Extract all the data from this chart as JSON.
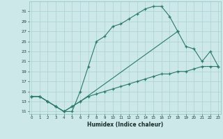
{
  "xlabel": "Humidex (Indice chaleur)",
  "bg_color": "#cce8e8",
  "grid_color": "#aad0d0",
  "line_color": "#2a7a6a",
  "curve1_x": [
    0,
    1,
    2,
    3,
    4,
    5,
    6,
    7,
    8,
    9,
    10,
    11,
    12,
    13,
    14,
    15,
    16,
    17,
    18
  ],
  "curve1_y": [
    14,
    14,
    13,
    12,
    11,
    11,
    15,
    20,
    25,
    26,
    28,
    28.5,
    29.5,
    30.5,
    31.5,
    32,
    32,
    30,
    27
  ],
  "curve2_x": [
    0,
    1,
    2,
    3,
    4,
    5,
    6,
    18,
    19,
    20,
    21,
    22,
    23
  ],
  "curve2_y": [
    14,
    14,
    13,
    12,
    11,
    12,
    13,
    27,
    24,
    23.5,
    21,
    23,
    20
  ],
  "curve3_x": [
    0,
    1,
    2,
    3,
    4,
    5,
    6,
    7,
    8,
    9,
    10,
    11,
    12,
    13,
    14,
    15,
    16,
    17,
    18,
    19,
    20,
    21,
    22,
    23
  ],
  "curve3_y": [
    14,
    14,
    13,
    12,
    11,
    12,
    13,
    14,
    14.5,
    15,
    15.5,
    16,
    16.5,
    17,
    17.5,
    18,
    18.5,
    18.5,
    19,
    19,
    19.5,
    20,
    20,
    20
  ],
  "xlim": [
    -0.3,
    23.3
  ],
  "ylim": [
    10.5,
    33
  ],
  "yticks": [
    11,
    13,
    15,
    17,
    19,
    21,
    23,
    25,
    27,
    29,
    31
  ],
  "xticks": [
    0,
    1,
    2,
    3,
    4,
    5,
    6,
    7,
    8,
    9,
    10,
    11,
    12,
    13,
    14,
    15,
    16,
    17,
    18,
    19,
    20,
    21,
    22,
    23
  ]
}
